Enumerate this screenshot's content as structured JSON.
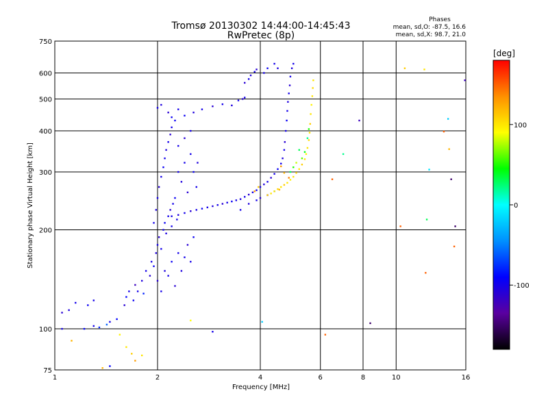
{
  "chart_data": {
    "type": "scatter",
    "title": "Tromsø 20130302 14:44:00-14:45:43",
    "subtitle": "RwPretec (8p)",
    "stats": {
      "heading": "Phases",
      "line1": "mean, sd,O:  -87.5, 16.6",
      "line2": "mean, sd,X:  98.7, 21.0"
    },
    "xlabel": "Frequency [MHz]",
    "ylabel": "Stationary phase Virtual Height [km]",
    "x_scale": "log",
    "y_scale": "log",
    "xlim": [
      1,
      16
    ],
    "ylim": [
      75,
      750
    ],
    "grid": true,
    "x_ticks": [
      1,
      2,
      4,
      6,
      8,
      10,
      16
    ],
    "y_ticks": [
      75,
      100,
      200,
      300,
      400,
      500,
      600,
      750
    ],
    "x_gridlines": [
      2,
      4,
      6,
      8,
      10
    ],
    "y_gridlines": [
      100,
      200,
      300,
      400,
      500,
      600
    ],
    "colorbar": {
      "title": "[deg]",
      "range": [
        -180,
        180
      ],
      "ticks": [
        -100,
        0,
        100
      ],
      "colors": [
        "#000000",
        "#5a00a0",
        "#0000ff",
        "#0090ff",
        "#00ffff",
        "#00ff00",
        "#ffff00",
        "#ff9000",
        "#ff0000"
      ]
    },
    "series": [
      {
        "points": [
          [
            1.05,
            112,
            -110
          ],
          [
            1.1,
            114,
            -105
          ],
          [
            1.15,
            120,
            -100
          ],
          [
            1.25,
            118,
            -95
          ],
          [
            1.3,
            122,
            -100
          ],
          [
            1.22,
            100,
            -90
          ],
          [
            1.3,
            102,
            -100
          ],
          [
            1.35,
            101,
            -80
          ],
          [
            1.42,
            103,
            -60
          ],
          [
            1.45,
            105,
            -100
          ],
          [
            1.52,
            107,
            -90
          ],
          [
            1.55,
            96,
            95
          ],
          [
            1.62,
            88,
            100
          ],
          [
            1.68,
            84,
            110
          ],
          [
            1.72,
            80,
            130
          ],
          [
            1.05,
            100,
            -100
          ],
          [
            1.12,
            92,
            120
          ],
          [
            1.38,
            76,
            120
          ],
          [
            1.45,
            77,
            -90
          ],
          [
            1.6,
            118,
            -110
          ],
          [
            1.62,
            125,
            -90
          ],
          [
            1.65,
            130,
            -100
          ],
          [
            1.7,
            122,
            -95
          ],
          [
            1.72,
            136,
            -120
          ],
          [
            1.75,
            130,
            -100
          ],
          [
            1.8,
            140,
            -105
          ],
          [
            1.82,
            128,
            -80
          ],
          [
            1.85,
            150,
            -100
          ],
          [
            1.9,
            145,
            -110
          ],
          [
            1.92,
            160,
            -100
          ],
          [
            1.95,
            155,
            -95
          ],
          [
            1.98,
            170,
            -105
          ],
          [
            2.0,
            180,
            -100
          ],
          [
            2.02,
            190,
            -110
          ],
          [
            2.05,
            175,
            -100
          ],
          [
            2.08,
            200,
            -100
          ],
          [
            2.1,
            210,
            -95
          ],
          [
            2.12,
            195,
            -105
          ],
          [
            2.15,
            220,
            -100
          ],
          [
            2.18,
            230,
            -110
          ],
          [
            2.2,
            205,
            -100
          ],
          [
            2.22,
            240,
            -100
          ],
          [
            2.25,
            250,
            -95
          ],
          [
            2.28,
            215,
            -100
          ],
          [
            2.0,
            140,
            -110
          ],
          [
            2.05,
            130,
            -100
          ],
          [
            2.1,
            150,
            -105
          ],
          [
            2.15,
            145,
            -100
          ],
          [
            2.2,
            160,
            -95
          ],
          [
            2.25,
            135,
            -110
          ],
          [
            2.3,
            170,
            -100
          ],
          [
            2.35,
            150,
            -105
          ],
          [
            2.4,
            165,
            -100
          ],
          [
            2.45,
            180,
            -110
          ],
          [
            2.5,
            160,
            -100
          ],
          [
            2.55,
            190,
            -95
          ],
          [
            1.95,
            210,
            -100
          ],
          [
            1.98,
            230,
            -105
          ],
          [
            2.0,
            250,
            -100
          ],
          [
            2.02,
            270,
            -110
          ],
          [
            2.05,
            290,
            -100
          ],
          [
            2.08,
            310,
            -95
          ],
          [
            2.1,
            330,
            -100
          ],
          [
            2.12,
            350,
            -105
          ],
          [
            2.15,
            370,
            -100
          ],
          [
            2.18,
            390,
            -110
          ],
          [
            2.2,
            410,
            -100
          ],
          [
            2.25,
            430,
            -95
          ],
          [
            2.3,
            300,
            -100
          ],
          [
            2.35,
            280,
            -105
          ],
          [
            2.4,
            320,
            -100
          ],
          [
            2.45,
            260,
            -110
          ],
          [
            2.5,
            340,
            -100
          ],
          [
            2.55,
            300,
            -95
          ],
          [
            2.6,
            270,
            -100
          ],
          [
            2.62,
            320,
            -105
          ],
          [
            2.3,
            360,
            -100
          ],
          [
            2.4,
            380,
            -110
          ],
          [
            2.5,
            400,
            -100
          ],
          [
            2.2,
            440,
            -95
          ],
          [
            2.0,
            470,
            -100
          ],
          [
            2.05,
            480,
            -105
          ],
          [
            2.15,
            455,
            -110
          ],
          [
            2.3,
            465,
            -100
          ],
          [
            2.4,
            445,
            -95
          ],
          [
            2.55,
            455,
            -105
          ],
          [
            2.7,
            465,
            -100
          ],
          [
            2.9,
            475,
            -110
          ],
          [
            3.1,
            482,
            -100
          ],
          [
            3.3,
            478,
            -105
          ],
          [
            3.45,
            495,
            -100
          ],
          [
            3.55,
            500,
            -110
          ],
          [
            3.6,
            505,
            -100
          ],
          [
            2.2,
            220,
            -100
          ],
          [
            2.3,
            222,
            -105
          ],
          [
            2.4,
            225,
            -100
          ],
          [
            2.5,
            228,
            -110
          ],
          [
            2.6,
            230,
            -100
          ],
          [
            2.7,
            232,
            -95
          ],
          [
            2.8,
            234,
            -100
          ],
          [
            2.9,
            236,
            -105
          ],
          [
            3.0,
            238,
            -100
          ],
          [
            3.1,
            240,
            -110
          ],
          [
            3.2,
            242,
            -100
          ],
          [
            3.3,
            244,
            -95
          ],
          [
            3.4,
            246,
            -100
          ],
          [
            3.5,
            248,
            -105
          ],
          [
            3.6,
            252,
            -100
          ],
          [
            3.7,
            256,
            -110
          ],
          [
            3.8,
            260,
            -100
          ],
          [
            3.9,
            264,
            -95
          ],
          [
            4.0,
            270,
            -100
          ],
          [
            4.1,
            275,
            -105
          ],
          [
            4.2,
            280,
            -100
          ],
          [
            4.3,
            288,
            -110
          ],
          [
            4.4,
            296,
            -100
          ],
          [
            4.5,
            306,
            -95
          ],
          [
            4.6,
            318,
            -100
          ],
          [
            4.65,
            330,
            -105
          ],
          [
            4.7,
            350,
            -100
          ],
          [
            4.72,
            370,
            -110
          ],
          [
            4.75,
            400,
            -100
          ],
          [
            4.78,
            430,
            -95
          ],
          [
            4.8,
            460,
            -100
          ],
          [
            4.82,
            490,
            -105
          ],
          [
            4.85,
            520,
            -100
          ],
          [
            4.88,
            550,
            -110
          ],
          [
            4.9,
            585,
            -100
          ],
          [
            4.95,
            620,
            -105
          ],
          [
            5.0,
            640,
            -100
          ],
          [
            3.6,
            560,
            -110
          ],
          [
            3.7,
            575,
            -100
          ],
          [
            3.75,
            590,
            -105
          ],
          [
            3.85,
            605,
            -100
          ],
          [
            3.9,
            615,
            -110
          ],
          [
            4.1,
            600,
            -100
          ],
          [
            4.2,
            620,
            -95
          ],
          [
            4.4,
            640,
            -100
          ],
          [
            4.5,
            620,
            -105
          ],
          [
            3.5,
            230,
            -100
          ],
          [
            3.7,
            240,
            -105
          ],
          [
            3.9,
            246,
            -100
          ],
          [
            4.0,
            250,
            -110
          ],
          [
            4.2,
            255,
            -95
          ],
          [
            4.4,
            262,
            -100
          ],
          [
            4.2,
            255,
            110
          ],
          [
            4.3,
            258,
            100
          ],
          [
            4.4,
            262,
            95
          ],
          [
            4.5,
            266,
            105
          ],
          [
            4.6,
            270,
            100
          ],
          [
            4.7,
            274,
            110
          ],
          [
            4.8,
            278,
            100
          ],
          [
            4.9,
            284,
            95
          ],
          [
            5.0,
            290,
            100
          ],
          [
            5.1,
            298,
            105
          ],
          [
            5.2,
            306,
            100
          ],
          [
            5.3,
            316,
            110
          ],
          [
            5.4,
            328,
            100
          ],
          [
            5.45,
            340,
            95
          ],
          [
            5.5,
            355,
            100
          ],
          [
            5.55,
            375,
            105
          ],
          [
            5.58,
            395,
            100
          ],
          [
            5.6,
            420,
            110
          ],
          [
            5.62,
            450,
            100
          ],
          [
            5.65,
            480,
            95
          ],
          [
            5.68,
            510,
            100
          ],
          [
            5.7,
            540,
            105
          ],
          [
            5.72,
            570,
            100
          ],
          [
            5.3,
            330,
            60
          ],
          [
            5.4,
            345,
            40
          ],
          [
            5.5,
            380,
            20
          ],
          [
            5.55,
            405,
            50
          ],
          [
            4.9,
            300,
            30
          ],
          [
            5.0,
            310,
            50
          ],
          [
            5.1,
            320,
            80
          ],
          [
            5.2,
            350,
            30
          ],
          [
            4.6,
            312,
            130
          ],
          [
            4.7,
            298,
            120
          ],
          [
            4.85,
            288,
            140
          ],
          [
            4.55,
            265,
            120
          ],
          [
            3.85,
            262,
            130
          ],
          [
            3.95,
            270,
            110
          ],
          [
            1.8,
            83,
            100
          ],
          [
            2.5,
            106,
            90
          ],
          [
            2.9,
            98,
            -100
          ],
          [
            4.05,
            105,
            -20
          ],
          [
            6.2,
            96,
            150
          ],
          [
            6.5,
            285,
            150
          ],
          [
            7.0,
            340,
            20
          ],
          [
            7.8,
            430,
            -120
          ],
          [
            8.4,
            104,
            -150
          ],
          [
            10.3,
            205,
            150
          ],
          [
            10.6,
            620,
            110
          ],
          [
            12.1,
            615,
            100
          ],
          [
            12.2,
            148,
            150
          ],
          [
            12.3,
            215,
            30
          ],
          [
            12.5,
            305,
            -10
          ],
          [
            13.8,
            398,
            150
          ],
          [
            14.2,
            435,
            -20
          ],
          [
            14.3,
            352,
            120
          ],
          [
            14.5,
            285,
            -150
          ],
          [
            14.9,
            205,
            -150
          ],
          [
            14.8,
            178,
            150
          ],
          [
            15.9,
            570,
            -120
          ]
        ]
      }
    ]
  }
}
